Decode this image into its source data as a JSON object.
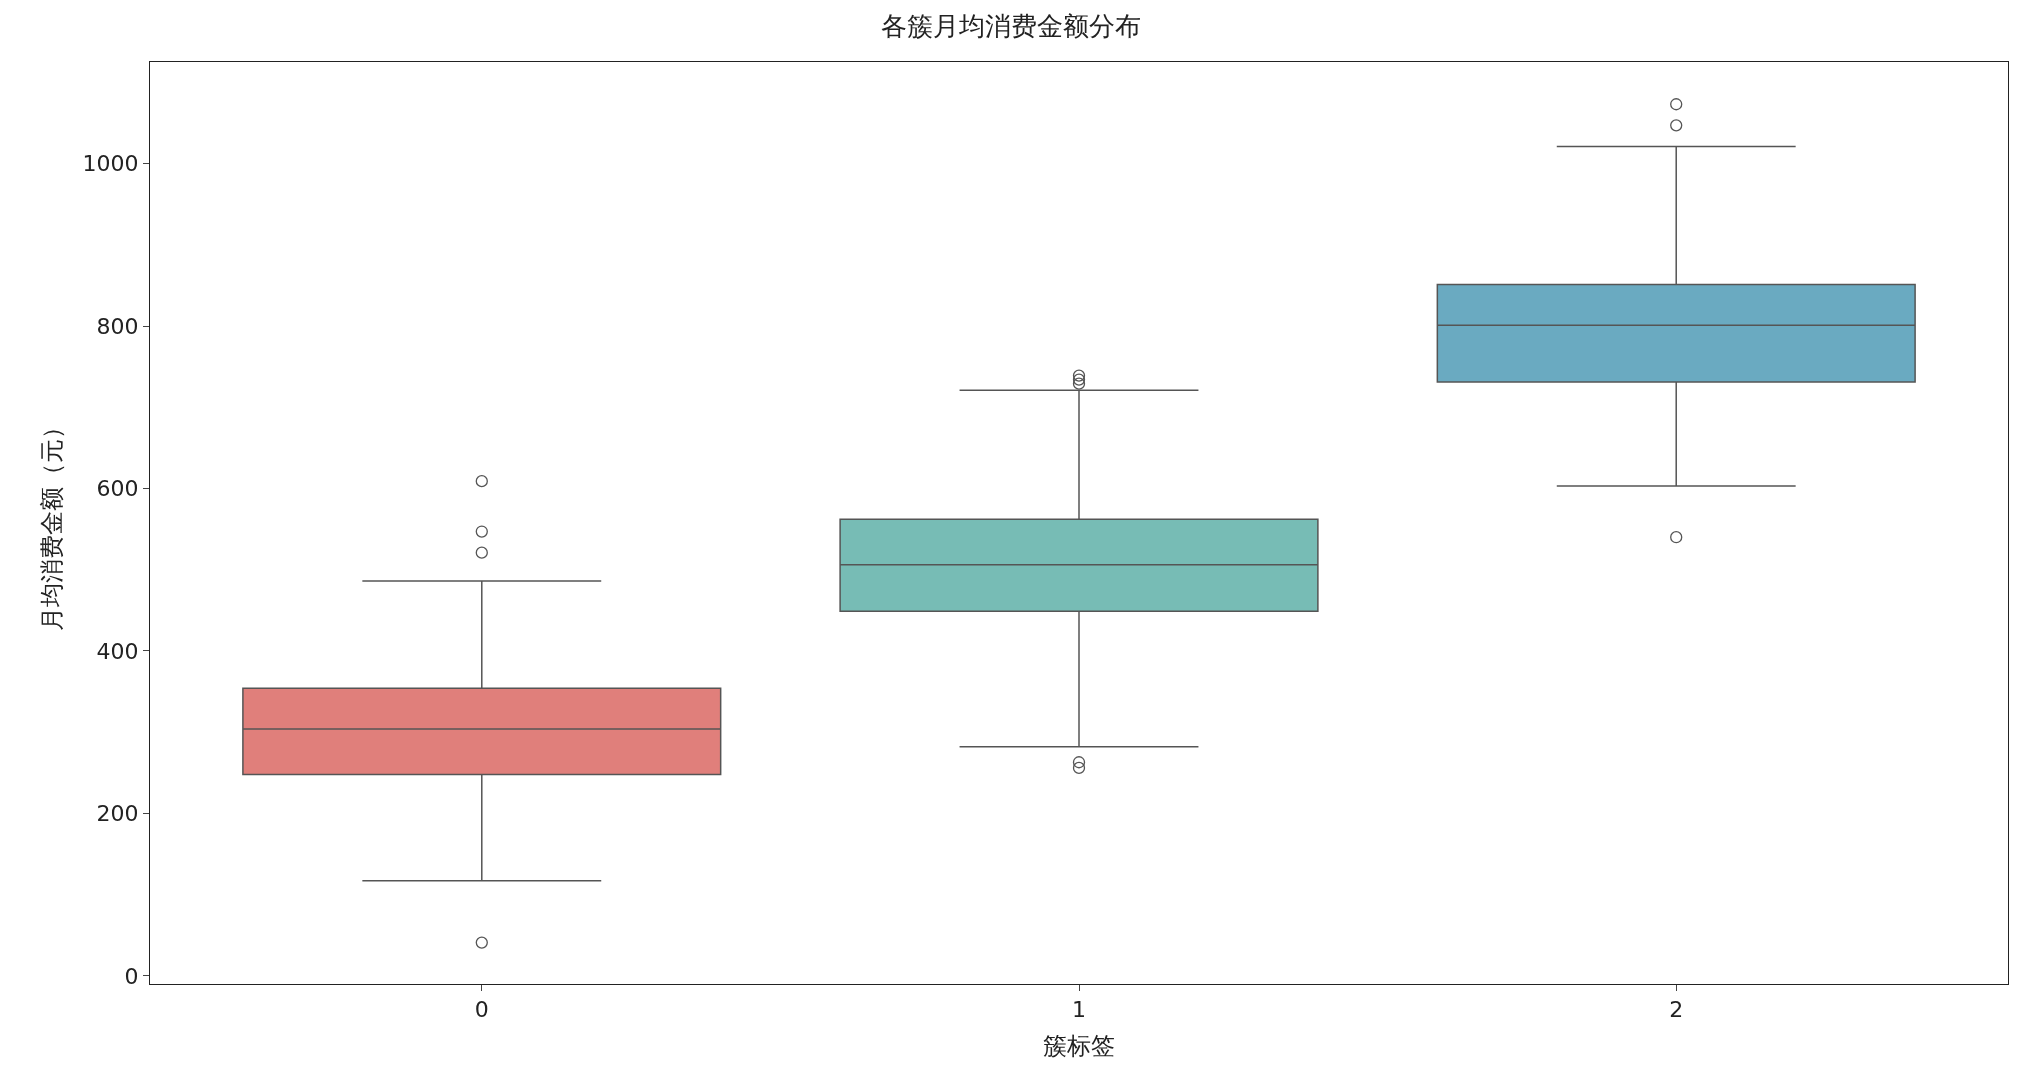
{
  "chart_data": {
    "type": "box",
    "title": "各簇月均消费金额分布",
    "xlabel": "簇标签",
    "ylabel": "月均消费金额（元）",
    "categories": [
      "0",
      "1",
      "2"
    ],
    "colors": [
      "#e07f7b",
      "#77bcb5",
      "#6aaac1"
    ],
    "boxes": [
      {
        "low": 117,
        "q1": 248,
        "median": 304,
        "q3": 354,
        "high": 486,
        "outliers": [
          609,
          547,
          521,
          41
        ]
      },
      {
        "low": 282,
        "q1": 449,
        "median": 506,
        "q3": 562,
        "high": 721,
        "outliers": [
          739,
          734,
          729,
          263,
          256
        ]
      },
      {
        "low": 603,
        "q1": 731,
        "median": 801,
        "q3": 851,
        "high": 1021,
        "outliers": [
          1073,
          1047,
          540
        ]
      }
    ],
    "ylim": [
      -10,
      1125
    ],
    "yticks": [
      0,
      200,
      400,
      600,
      800,
      1000
    ]
  }
}
